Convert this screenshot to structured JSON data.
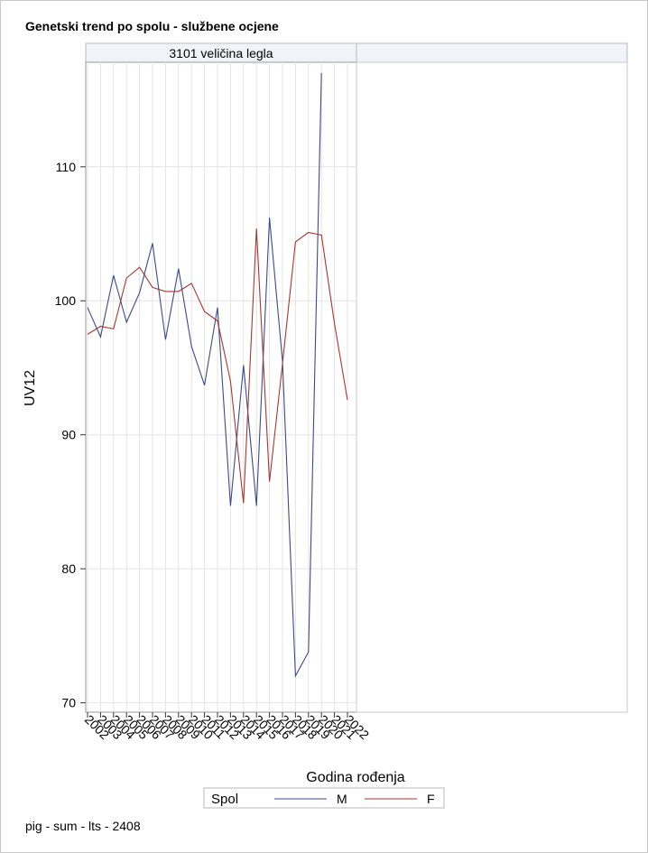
{
  "title": "Genetski trend po spolu - službene ocjene",
  "footnote": "pig - sum - lts - 2408",
  "panel_label": "3101 veličina legla",
  "colors": {
    "M": "#3b4a8c",
    "F": "#a83632",
    "grid": "#e4e4e4",
    "axis": "#999999",
    "header_bg": "#f2f3f8"
  },
  "chart_data": {
    "type": "line",
    "title": "Genetski trend po spolu - službene ocjene",
    "xlabel": "Godina rođenja",
    "ylabel": "UV12",
    "categories": [
      "2002",
      "2003",
      "2004",
      "2005",
      "2006",
      "2007",
      "2008",
      "2009",
      "2010",
      "2011",
      "2012",
      "2013",
      "2014",
      "2015",
      "2016",
      "2017",
      "2018",
      "2019",
      "2020",
      "2021",
      "2022"
    ],
    "yticks": [
      70,
      80,
      90,
      100,
      110
    ],
    "ylim": [
      69.3,
      117.8
    ],
    "grid": true,
    "legend_title": "Spol",
    "legend_position": "bottom",
    "series": [
      {
        "name": "M",
        "values": [
          99.5,
          97.3,
          101.9,
          98.4,
          100.6,
          104.3,
          97.1,
          102.4,
          96.6,
          93.7,
          99.5,
          84.7,
          95.2,
          84.7,
          106.2,
          95.5,
          72.0,
          73.8,
          117.0,
          null,
          null
        ]
      },
      {
        "name": "F",
        "values": [
          97.5,
          98.1,
          97.9,
          101.7,
          102.5,
          101.0,
          100.7,
          100.7,
          101.3,
          99.2,
          98.5,
          94.0,
          84.9,
          105.4,
          86.5,
          95.3,
          104.4,
          105.1,
          104.9,
          98.3,
          92.6
        ]
      }
    ]
  }
}
